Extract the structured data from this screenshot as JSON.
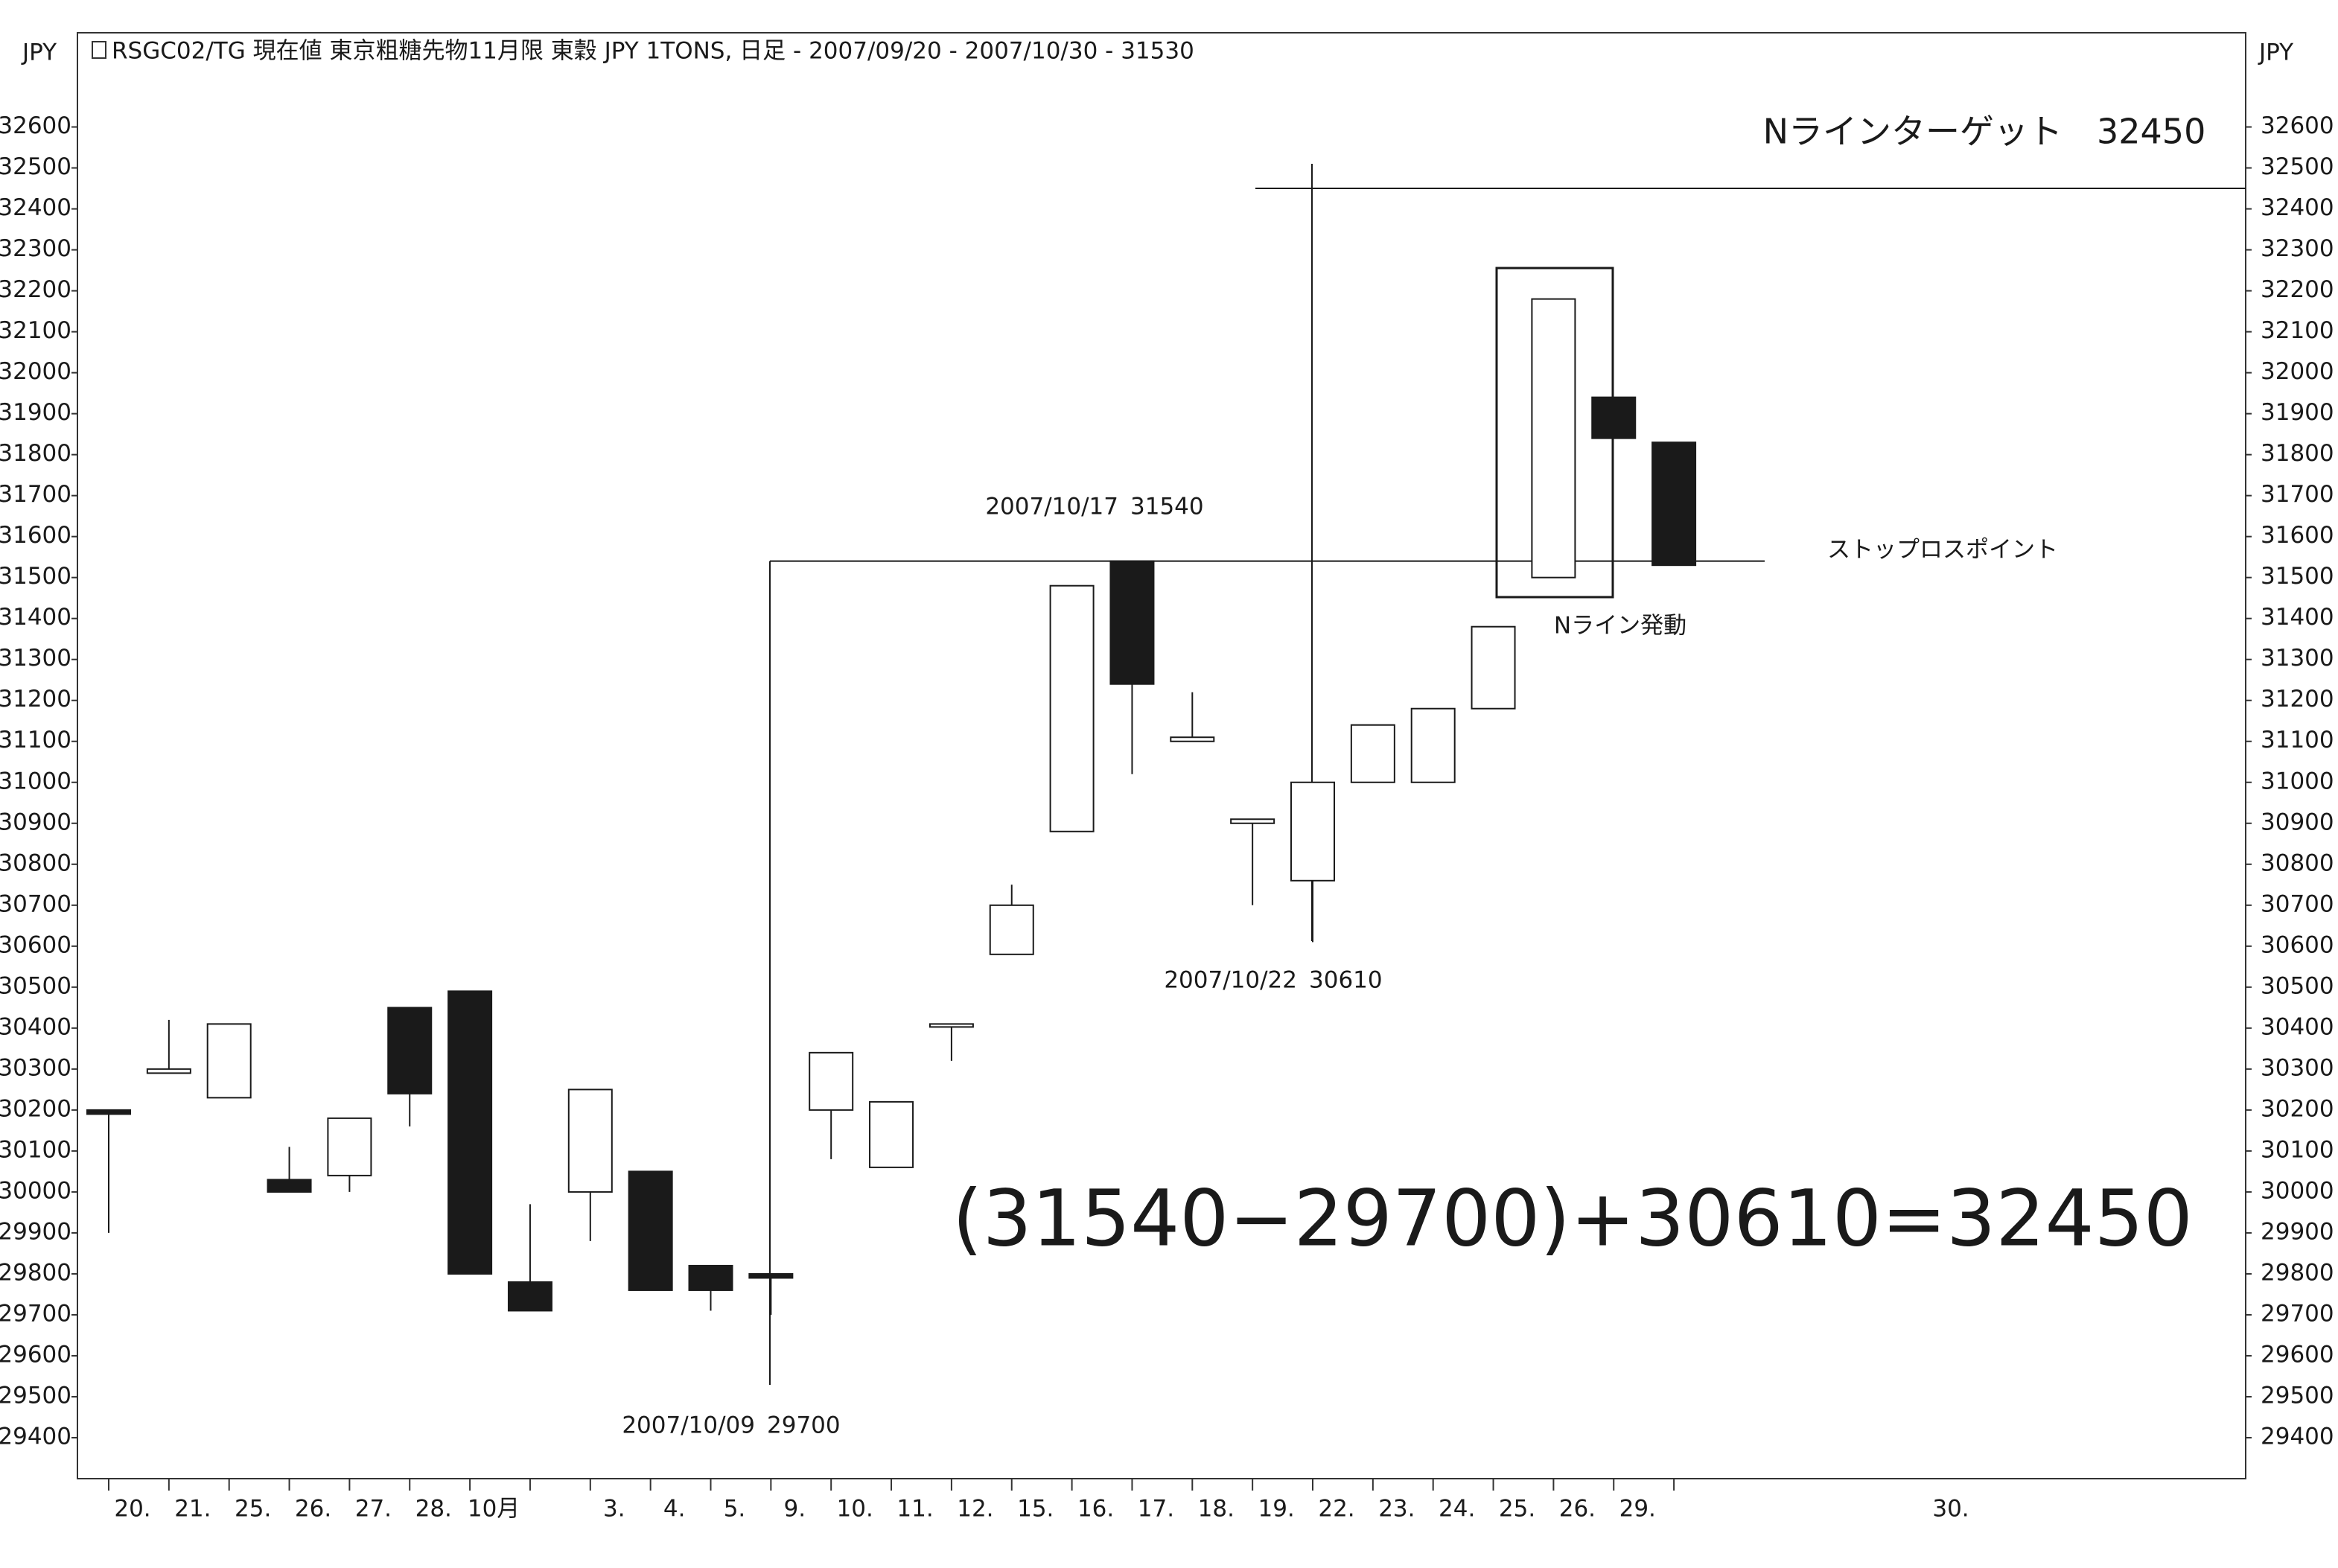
{
  "chart_data": {
    "type": "candlestick",
    "title": "RSGC02/TG 現在値 東京粗糖先物11月限 東穀 JPY 1TONS, 日足 - 2007/09/20 - 2007/10/30 - 31530",
    "y_unit": "JPY",
    "categories": [
      "20.",
      "21.",
      "25.",
      "26.",
      "27.",
      "28.",
      "10月",
      null,
      "3.",
      "4.",
      "5.",
      "9.",
      "10.",
      "11.",
      "12.",
      "15.",
      "16.",
      "17.",
      "18.",
      "19.",
      "22.",
      "23.",
      "24.",
      "25.",
      "26.",
      "29.",
      "30."
    ],
    "open": [
      30200,
      30290,
      30230,
      30030,
      30040,
      30450,
      30490,
      29780,
      30000,
      30050,
      29820,
      29800,
      30200,
      30060,
      30410,
      30580,
      30880,
      31540,
      31100,
      30900,
      30760,
      31000,
      31000,
      31180,
      31500,
      31940,
      31830
    ],
    "high": [
      30200,
      30420,
      30410,
      30110,
      30180,
      30450,
      30490,
      29970,
      30250,
      30050,
      29820,
      29800,
      30340,
      30220,
      30410,
      30750,
      31480,
      31540,
      31220,
      30910,
      31000,
      31140,
      31180,
      31380,
      32180,
      31940,
      31830
    ],
    "low": [
      29900,
      30290,
      30230,
      30000,
      30000,
      30160,
      29800,
      29710,
      29880,
      29760,
      29710,
      29700,
      30080,
      30060,
      30320,
      30580,
      30880,
      31020,
      31100,
      30700,
      30610,
      31000,
      31000,
      31180,
      31500,
      31840,
      31530
    ],
    "close": [
      30190,
      30300,
      30410,
      30000,
      30180,
      30240,
      29800,
      29710,
      30250,
      29760,
      29760,
      29790,
      30340,
      30220,
      30410,
      30700,
      31480,
      31240,
      31110,
      30910,
      31000,
      31140,
      31180,
      31380,
      32180,
      31840,
      31530
    ],
    "up_color": "#ffffff",
    "down_color": "#1a1a1a",
    "ylim": [
      29300,
      32830
    ],
    "yticks": [
      29400,
      29500,
      29600,
      29700,
      29800,
      29900,
      30000,
      30100,
      30200,
      30300,
      30400,
      30500,
      30600,
      30700,
      30800,
      30900,
      31000,
      31100,
      31200,
      31300,
      31400,
      31500,
      31600,
      31700,
      31800,
      31900,
      32000,
      32100,
      32200,
      32300,
      32400,
      32500,
      32600
    ],
    "annotations": [
      {
        "date": "2007/10/17",
        "value": 31540
      },
      {
        "date": "2007/10/22",
        "value": 30610
      },
      {
        "date": "2007/10/09",
        "value": 29700
      }
    ],
    "target": {
      "label": "Nラインターゲット",
      "value": 32450
    },
    "stop_label": "ストップロスポイント",
    "trigger_label": "Nライン発動",
    "formula": "(31540−29700)+30610=32450"
  }
}
